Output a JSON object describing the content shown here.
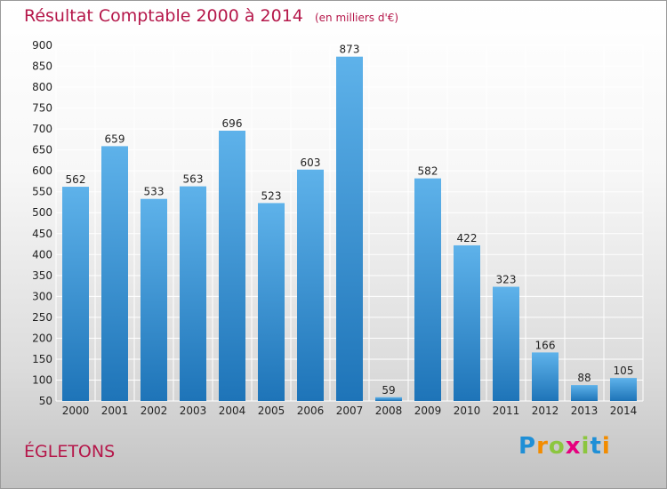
{
  "title": "Résultat Comptable 2000 à 2014",
  "unit_note": "(en milliers d'€)",
  "commune": "ÉGLETONS",
  "brand": {
    "letters": [
      "P",
      "r",
      "o",
      "x",
      "i",
      "t",
      "i"
    ],
    "colors": [
      "#1f8fd6",
      "#f28c00",
      "#8cc63f",
      "#e6007e",
      "#8cc63f",
      "#1f8fd6",
      "#f28c00"
    ]
  },
  "colors": {
    "title": "#b5174a",
    "bar_light": "#5eb2ea",
    "bar_dark": "#1e74b8",
    "grid": "#ffffff",
    "axis_text": "#222222"
  },
  "chart_data": {
    "type": "bar",
    "categories": [
      "2000",
      "2001",
      "2002",
      "2003",
      "2004",
      "2005",
      "2006",
      "2007",
      "2008",
      "2009",
      "2010",
      "2011",
      "2012",
      "2013",
      "2014"
    ],
    "values": [
      562,
      659,
      533,
      563,
      696,
      523,
      603,
      873,
      59,
      582,
      422,
      323,
      166,
      88,
      105
    ],
    "title": "Résultat Comptable 2000 à 2014",
    "xlabel": "",
    "ylabel": "",
    "ylim": [
      50,
      900
    ],
    "yticks": [
      50,
      100,
      150,
      200,
      250,
      300,
      350,
      400,
      450,
      500,
      550,
      600,
      650,
      700,
      750,
      800,
      850,
      900
    ],
    "grid": true,
    "legend": "none"
  }
}
